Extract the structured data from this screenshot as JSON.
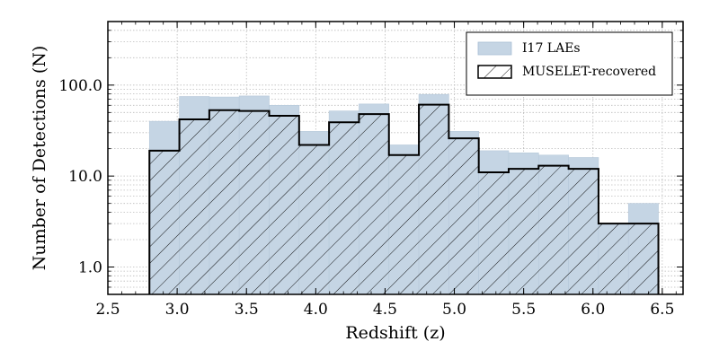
{
  "chart_data": {
    "type": "bar",
    "subtype": "step-histogram",
    "title": "",
    "xlabel": "Redshift (z)",
    "ylabel": "Number of Detections (N)",
    "xlim": [
      2.5,
      6.65
    ],
    "ylim": [
      0.5,
      500
    ],
    "yscale": "log",
    "grid": true,
    "legend_position": "top-right",
    "x_ticks": [
      2.5,
      3.0,
      3.5,
      4.0,
      4.5,
      5.0,
      5.5,
      6.0,
      6.5
    ],
    "x_tick_labels": [
      "2.5",
      "3.0",
      "3.5",
      "4.0",
      "4.5",
      "5.0",
      "5.5",
      "6.0",
      "6.5"
    ],
    "y_ticks": [
      1,
      10,
      100
    ],
    "y_tick_labels": [
      "1.0",
      "10.0",
      "100.0"
    ],
    "bin_edges": [
      2.8,
      3.016,
      3.232,
      3.448,
      3.664,
      3.88,
      4.096,
      4.312,
      4.528,
      4.744,
      4.96,
      5.176,
      5.392,
      5.608,
      5.824,
      6.04,
      6.256,
      6.472
    ],
    "series": [
      {
        "name": "I17 LAEs",
        "style": "filled",
        "color": "#c5d5e4",
        "values": [
          40,
          75,
          74,
          76,
          60,
          31,
          52,
          62,
          22,
          79,
          31,
          19,
          18,
          17,
          16,
          3,
          5
        ]
      },
      {
        "name": "MUSELET-recovered",
        "style": "hatched-step",
        "color": "#000000",
        "values": [
          19,
          42,
          53,
          52,
          46,
          22,
          39,
          48,
          17,
          61,
          26,
          11,
          12,
          13,
          12,
          3,
          3
        ]
      }
    ]
  }
}
